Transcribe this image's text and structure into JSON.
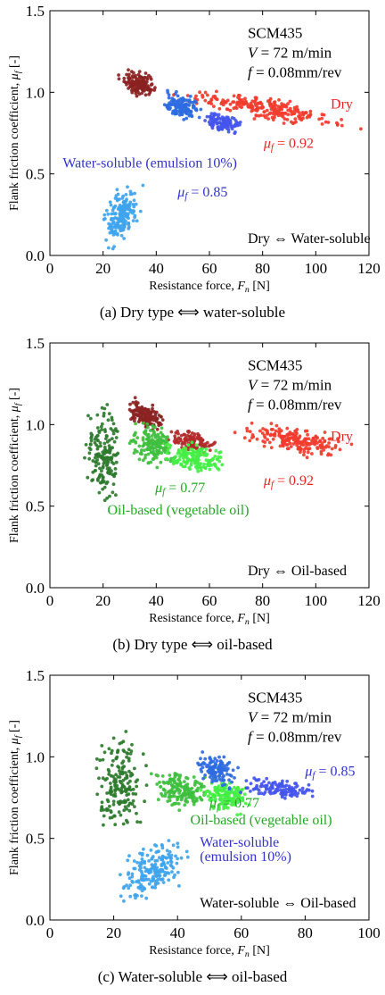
{
  "chart_data": [
    {
      "type": "scatter",
      "caption": "(a) Dry type ⟺ water-soluble",
      "xlabel": "Resistance force, F_n [N]",
      "ylabel": "Flank friction coefficient, μ_f [-]",
      "xlim": [
        0,
        120
      ],
      "ylim": [
        0,
        1.5
      ],
      "xticks": [
        0,
        20,
        40,
        60,
        80,
        100,
        120
      ],
      "yticks": [
        0.0,
        0.5,
        1.0,
        1.5
      ],
      "info": [
        "SCM435",
        "V = 72 m/min",
        "f = 0.08mm/rev"
      ],
      "legend_text": "Dry ⇔ Water-soluble",
      "labels": [
        {
          "text": "Dry",
          "color": "#ee2222"
        },
        {
          "text": "μ_f = 0.92",
          "color": "#ee2222"
        },
        {
          "text": "Water-soluble (emulsion 10%)",
          "color": "#3333cc"
        },
        {
          "text": "μ_f = 0.85",
          "color": "#3333cc"
        }
      ],
      "series": [
        {
          "color": "#8b2222",
          "x": [
            25,
            42
          ],
          "y": [
            0.95,
            1.15
          ],
          "slope": -0.006,
          "density": 150
        },
        {
          "color": "#f23c2e",
          "x": [
            42,
            118
          ],
          "y": [
            0.82,
            1.0
          ],
          "slope": -0.0025,
          "density": 240
        },
        {
          "color": "#2e6be0",
          "x": [
            40,
            58
          ],
          "y": [
            0.82,
            1.02
          ],
          "slope": -0.004,
          "density": 130
        },
        {
          "color": "#4455ee",
          "x": [
            55,
            75
          ],
          "y": [
            0.74,
            0.88
          ],
          "slope": -0.003,
          "density": 110
        },
        {
          "color": "#3fa4ee",
          "x": [
            18,
            36
          ],
          "y": [
            0.05,
            0.45
          ],
          "slope": 0.01,
          "density": 180
        }
      ]
    },
    {
      "type": "scatter",
      "caption": "(b) Dry type ⟺ oil-based",
      "xlabel": "Resistance force, F_n [N]",
      "ylabel": "Flank friction coefficient, μ_f [-]",
      "xlim": [
        0,
        120
      ],
      "ylim": [
        0,
        1.5
      ],
      "xticks": [
        0,
        20,
        40,
        60,
        80,
        100,
        120
      ],
      "yticks": [
        0.0,
        0.5,
        1.0,
        1.5
      ],
      "info": [
        "SCM435",
        "V = 72 m/min",
        "f = 0.08mm/rev"
      ],
      "legend_text": "Dry ⇔ Oil-based",
      "labels": [
        {
          "text": "Dry",
          "color": "#ee2222"
        },
        {
          "text": "μ_f = 0.92",
          "color": "#ee2222"
        },
        {
          "text": "μ_f = 0.77",
          "color": "#22aa22"
        },
        {
          "text": "Oil-based (vegetable oil)",
          "color": "#22aa22"
        }
      ],
      "series": [
        {
          "color": "#8b2222",
          "x": [
            27,
            45
          ],
          "y": [
            0.95,
            1.15
          ],
          "slope": -0.006,
          "density": 130
        },
        {
          "color": "#b22a2a",
          "x": [
            42,
            64
          ],
          "y": [
            0.82,
            0.98
          ],
          "slope": -0.004,
          "density": 110
        },
        {
          "color": "#f23c2e",
          "x": [
            68,
            118
          ],
          "y": [
            0.8,
            1.0
          ],
          "slope": -0.0025,
          "density": 200
        },
        {
          "color": "#2d7a2d",
          "x": [
            12,
            30
          ],
          "y": [
            0.45,
            1.2
          ],
          "slope": 0.0,
          "density": 170
        },
        {
          "color": "#3fbf3f",
          "x": [
            28,
            50
          ],
          "y": [
            0.7,
            1.05
          ],
          "slope": -0.004,
          "density": 160
        },
        {
          "color": "#44ee44",
          "x": [
            40,
            68
          ],
          "y": [
            0.68,
            0.9
          ],
          "slope": -0.003,
          "density": 160
        }
      ]
    },
    {
      "type": "scatter",
      "caption": "(c) Water-soluble ⟺ oil-based",
      "xlabel": "Resistance force, F_n [N]",
      "ylabel": "Flank friction coefficient, μ_f [-]",
      "xlim": [
        0,
        100
      ],
      "ylim": [
        0,
        1.5
      ],
      "xticks": [
        0,
        20,
        40,
        60,
        80,
        100
      ],
      "yticks": [
        0.0,
        0.5,
        1.0,
        1.5
      ],
      "info": [
        "SCM435",
        "V = 72 m/min",
        "f = 0.08mm/rev"
      ],
      "legend_text": "Water-soluble ⇔ Oil-based",
      "labels": [
        {
          "text": "μ_f = 0.85",
          "color": "#3333cc"
        },
        {
          "text": "μ_f = 0.77",
          "color": "#22aa22"
        },
        {
          "text": "Oil-based (vegetable oil)",
          "color": "#22aa22"
        },
        {
          "text": "Water-soluble",
          "color": "#3333cc"
        },
        {
          "text": "(emulsion 10%)",
          "color": "#3333cc"
        }
      ],
      "series": [
        {
          "color": "#2d7a2d",
          "x": [
            12,
            32
          ],
          "y": [
            0.45,
            1.2
          ],
          "slope": 0.0,
          "density": 180
        },
        {
          "color": "#3fbf3f",
          "x": [
            30,
            52
          ],
          "y": [
            0.65,
            0.95
          ],
          "slope": -0.003,
          "density": 170
        },
        {
          "color": "#44ee44",
          "x": [
            45,
            65
          ],
          "y": [
            0.65,
            0.88
          ],
          "slope": -0.003,
          "density": 150
        },
        {
          "color": "#2e6be0",
          "x": [
            44,
            60
          ],
          "y": [
            0.8,
            1.05
          ],
          "slope": -0.004,
          "density": 120
        },
        {
          "color": "#4455ee",
          "x": [
            58,
            86
          ],
          "y": [
            0.73,
            0.88
          ],
          "slope": -0.002,
          "density": 120
        },
        {
          "color": "#3fa4ee",
          "x": [
            20,
            45
          ],
          "y": [
            0.1,
            0.5
          ],
          "slope": 0.008,
          "density": 190
        }
      ]
    }
  ]
}
